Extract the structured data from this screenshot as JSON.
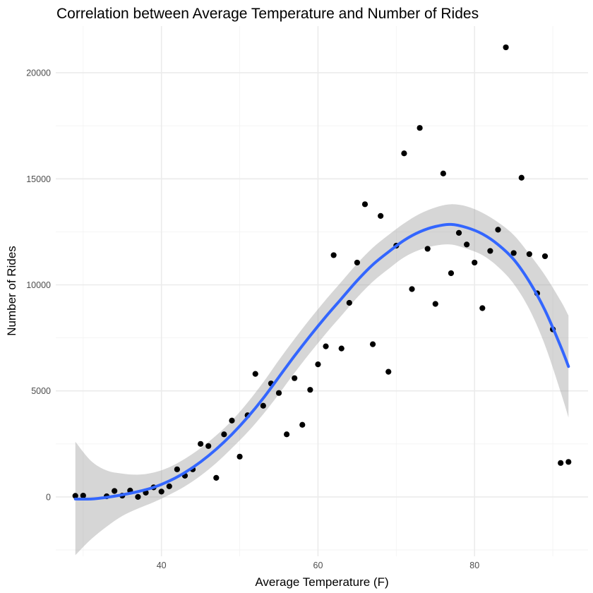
{
  "chart_data": {
    "type": "scatter",
    "title": "Correlation between Average Temperature and Number of Rides",
    "xlabel": "Average Temperature (F)",
    "ylabel": "Number of Rides",
    "xlim": [
      26.5,
      94.5
    ],
    "ylim": [
      -2800,
      22200
    ],
    "x_ticks": [
      40,
      60,
      80
    ],
    "y_ticks": [
      0,
      5000,
      10000,
      15000,
      20000
    ],
    "x_tick_labels": [
      "40",
      "60",
      "80"
    ],
    "y_tick_labels": [
      "0",
      "5000",
      "10000",
      "15000",
      "20000"
    ],
    "grid": true,
    "points": [
      {
        "x": 29,
        "y": 50
      },
      {
        "x": 30,
        "y": 60
      },
      {
        "x": 33,
        "y": 30
      },
      {
        "x": 34,
        "y": 280
      },
      {
        "x": 35,
        "y": 60
      },
      {
        "x": 36,
        "y": 300
      },
      {
        "x": 37,
        "y": 0
      },
      {
        "x": 38,
        "y": 200
      },
      {
        "x": 39,
        "y": 450
      },
      {
        "x": 40,
        "y": 250
      },
      {
        "x": 41,
        "y": 500
      },
      {
        "x": 42,
        "y": 1300
      },
      {
        "x": 43,
        "y": 1000
      },
      {
        "x": 44,
        "y": 1300
      },
      {
        "x": 45,
        "y": 2500
      },
      {
        "x": 46,
        "y": 2400
      },
      {
        "x": 47,
        "y": 900
      },
      {
        "x": 48,
        "y": 2950
      },
      {
        "x": 49,
        "y": 3600
      },
      {
        "x": 50,
        "y": 1900
      },
      {
        "x": 51,
        "y": 3850
      },
      {
        "x": 52,
        "y": 5800
      },
      {
        "x": 53,
        "y": 4300
      },
      {
        "x": 54,
        "y": 5350
      },
      {
        "x": 55,
        "y": 4900
      },
      {
        "x": 56,
        "y": 2950
      },
      {
        "x": 57,
        "y": 5600
      },
      {
        "x": 58,
        "y": 3400
      },
      {
        "x": 59,
        "y": 5050
      },
      {
        "x": 60,
        "y": 6250
      },
      {
        "x": 61,
        "y": 7100
      },
      {
        "x": 62,
        "y": 11400
      },
      {
        "x": 63,
        "y": 7000
      },
      {
        "x": 64,
        "y": 9150
      },
      {
        "x": 65,
        "y": 11050
      },
      {
        "x": 66,
        "y": 13800
      },
      {
        "x": 67,
        "y": 7200
      },
      {
        "x": 68,
        "y": 13250
      },
      {
        "x": 69,
        "y": 5900
      },
      {
        "x": 70,
        "y": 11850
      },
      {
        "x": 71,
        "y": 16200
      },
      {
        "x": 72,
        "y": 9800
      },
      {
        "x": 73,
        "y": 17400
      },
      {
        "x": 74,
        "y": 11700
      },
      {
        "x": 75,
        "y": 9100
      },
      {
        "x": 76,
        "y": 15250
      },
      {
        "x": 77,
        "y": 10550
      },
      {
        "x": 78,
        "y": 12450
      },
      {
        "x": 79,
        "y": 11900
      },
      {
        "x": 80,
        "y": 11050
      },
      {
        "x": 81,
        "y": 8900
      },
      {
        "x": 82,
        "y": 11600
      },
      {
        "x": 83,
        "y": 12600
      },
      {
        "x": 84,
        "y": 21200
      },
      {
        "x": 85,
        "y": 11500
      },
      {
        "x": 86,
        "y": 15050
      },
      {
        "x": 87,
        "y": 11450
      },
      {
        "x": 88,
        "y": 9600
      },
      {
        "x": 89,
        "y": 11350
      },
      {
        "x": 90,
        "y": 7900
      },
      {
        "x": 91,
        "y": 1600
      },
      {
        "x": 92,
        "y": 1650
      }
    ],
    "smooth": {
      "method": "loess",
      "color": "#3366FF",
      "band_color": "#999999",
      "points": [
        {
          "x": 29,
          "y": -100,
          "lo": -2750,
          "hi": 2600
        },
        {
          "x": 31,
          "y": -100,
          "lo": -2000,
          "hi": 1700
        },
        {
          "x": 33,
          "y": -20,
          "lo": -1400,
          "hi": 1250
        },
        {
          "x": 35,
          "y": 100,
          "lo": -900,
          "hi": 1100
        },
        {
          "x": 37,
          "y": 250,
          "lo": -550,
          "hi": 1050
        },
        {
          "x": 39,
          "y": 450,
          "lo": -250,
          "hi": 1150
        },
        {
          "x": 41,
          "y": 750,
          "lo": 100,
          "hi": 1400
        },
        {
          "x": 43,
          "y": 1150,
          "lo": 500,
          "hi": 1800
        },
        {
          "x": 45,
          "y": 1650,
          "lo": 1000,
          "hi": 2300
        },
        {
          "x": 47,
          "y": 2250,
          "lo": 1600,
          "hi": 2900
        },
        {
          "x": 49,
          "y": 2950,
          "lo": 2300,
          "hi": 3600
        },
        {
          "x": 51,
          "y": 3750,
          "lo": 3050,
          "hi": 4450
        },
        {
          "x": 53,
          "y": 4650,
          "lo": 3900,
          "hi": 5400
        },
        {
          "x": 55,
          "y": 5650,
          "lo": 4850,
          "hi": 6450
        },
        {
          "x": 57,
          "y": 6650,
          "lo": 5850,
          "hi": 7450
        },
        {
          "x": 59,
          "y": 7600,
          "lo": 6800,
          "hi": 8400
        },
        {
          "x": 61,
          "y": 8500,
          "lo": 7700,
          "hi": 9300
        },
        {
          "x": 63,
          "y": 9350,
          "lo": 8550,
          "hi": 10150
        },
        {
          "x": 65,
          "y": 10200,
          "lo": 9400,
          "hi": 11000
        },
        {
          "x": 67,
          "y": 10950,
          "lo": 10150,
          "hi": 11750
        },
        {
          "x": 69,
          "y": 11550,
          "lo": 10750,
          "hi": 12350
        },
        {
          "x": 71,
          "y": 12100,
          "lo": 11300,
          "hi": 12900
        },
        {
          "x": 73,
          "y": 12500,
          "lo": 11650,
          "hi": 13350
        },
        {
          "x": 75,
          "y": 12750,
          "lo": 11850,
          "hi": 13650
        },
        {
          "x": 77,
          "y": 12850,
          "lo": 11900,
          "hi": 13800
        },
        {
          "x": 79,
          "y": 12700,
          "lo": 11700,
          "hi": 13700
        },
        {
          "x": 81,
          "y": 12400,
          "lo": 11400,
          "hi": 13400
        },
        {
          "x": 83,
          "y": 11900,
          "lo": 10850,
          "hi": 12950
        },
        {
          "x": 85,
          "y": 11200,
          "lo": 10050,
          "hi": 12350
        },
        {
          "x": 87,
          "y": 10150,
          "lo": 8850,
          "hi": 11450
        },
        {
          "x": 89,
          "y": 8800,
          "lo": 7150,
          "hi": 10450
        },
        {
          "x": 91,
          "y": 7100,
          "lo": 4950,
          "hi": 9250
        },
        {
          "x": 92,
          "y": 6150,
          "lo": 3750,
          "hi": 8550
        }
      ]
    }
  }
}
